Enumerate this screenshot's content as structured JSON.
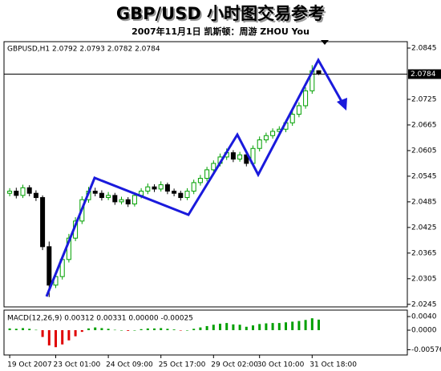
{
  "chart_data": [
    {
      "type": "candlestick",
      "title": "GBP/USD 小时图交易参考",
      "subtitle": "2007年11月1日  凯斯顿：周游 ZHOU You",
      "info": "GBPUSD,H1 2.0792 2.0793 2.0782 2.0784",
      "last_price": 2.0784,
      "up_color": "#00a000",
      "down_color": "#000000",
      "open": [
        2.0505,
        2.051,
        2.05,
        2.0518,
        2.0505,
        2.0495,
        2.038,
        2.029,
        2.031,
        2.035,
        2.04,
        2.044,
        2.049,
        2.051,
        2.0505,
        2.0495,
        2.05,
        2.0485,
        2.049,
        2.048,
        2.05,
        2.051,
        2.052,
        2.0515,
        2.0525,
        2.051,
        2.0505,
        2.0495,
        2.051,
        2.053,
        2.054,
        2.056,
        2.0575,
        2.059,
        2.06,
        2.0585,
        2.0595,
        2.0575,
        2.061,
        2.063,
        2.064,
        2.065,
        2.0655,
        2.067,
        2.069,
        2.071,
        2.0745,
        2.0792
      ],
      "high": [
        2.0517,
        2.0518,
        2.0525,
        2.0524,
        2.0512,
        2.05,
        2.0392,
        2.0318,
        2.0358,
        2.041,
        2.0449,
        2.0498,
        2.052,
        2.0518,
        2.0512,
        2.0508,
        2.0506,
        2.0497,
        2.0496,
        2.0507,
        2.0517,
        2.0528,
        2.0526,
        2.0533,
        2.053,
        2.0516,
        2.0511,
        2.0517,
        2.0537,
        2.0548,
        2.0567,
        2.0582,
        2.0598,
        2.061,
        2.0606,
        2.0602,
        2.0601,
        2.0617,
        2.0638,
        2.0647,
        2.0657,
        2.0662,
        2.0677,
        2.0698,
        2.0718,
        2.0753,
        2.0805,
        2.0793
      ],
      "low": [
        2.0498,
        2.0493,
        2.0494,
        2.0498,
        2.0487,
        2.0372,
        2.0262,
        2.0283,
        2.0303,
        2.0343,
        2.0393,
        2.0433,
        2.0483,
        2.0498,
        2.0488,
        2.0489,
        2.0478,
        2.0479,
        2.0473,
        2.0474,
        2.0493,
        2.0503,
        2.0508,
        2.0509,
        2.0503,
        2.0498,
        2.0488,
        2.0489,
        2.0503,
        2.0523,
        2.0533,
        2.0553,
        2.0568,
        2.0583,
        2.0578,
        2.0579,
        2.0568,
        2.0569,
        2.0603,
        2.0623,
        2.0633,
        2.0643,
        2.0648,
        2.0663,
        2.0683,
        2.0703,
        2.0738,
        2.0782
      ],
      "close": [
        2.051,
        2.05,
        2.0518,
        2.0505,
        2.0495,
        2.038,
        2.029,
        2.031,
        2.035,
        2.04,
        2.044,
        2.049,
        2.051,
        2.0505,
        2.0495,
        2.05,
        2.0485,
        2.049,
        2.048,
        2.05,
        2.051,
        2.052,
        2.0515,
        2.0525,
        2.051,
        2.0505,
        2.0495,
        2.051,
        2.053,
        2.054,
        2.056,
        2.0575,
        2.059,
        2.06,
        2.0585,
        2.0595,
        2.0575,
        2.061,
        2.063,
        2.064,
        2.065,
        2.0655,
        2.067,
        2.069,
        2.071,
        2.0745,
        2.0792,
        2.0784
      ],
      "ylim": [
        2.0239,
        2.086
      ],
      "yticks": [
        2.0245,
        2.0305,
        2.0365,
        2.0425,
        2.0485,
        2.0545,
        2.0605,
        2.0665,
        2.0725,
        2.0845
      ],
      "xticks": [
        {
          "value": 0,
          "label": "19 Oct 2007"
        },
        {
          "value": 7,
          "label": "23 Oct 01:00"
        },
        {
          "value": 15,
          "label": "24 Oct 09:00"
        },
        {
          "value": 23,
          "label": "25 Oct 17:00"
        },
        {
          "value": 31,
          "label": "29 Oct 02:00"
        },
        {
          "value": 38,
          "label": "30 Oct 10:00"
        },
        {
          "value": 46,
          "label": "31 Oct 18:00"
        }
      ]
    },
    {
      "type": "bar",
      "info": "MACD(12,26,9) 0.00312 0.00331 0.00000 -0.00025",
      "up_color": "#00a000",
      "down_color": "#e00000",
      "values": [
        0.0005,
        0.0004,
        0.0006,
        0.0004,
        0.0001,
        -0.002,
        -0.0045,
        -0.005,
        -0.0042,
        -0.003,
        -0.0018,
        -0.0005,
        0.0005,
        0.0008,
        0.0006,
        0.0004,
        0.0001,
        0.0,
        -0.0002,
        0.0,
        0.0003,
        0.0005,
        0.0005,
        0.0006,
        0.0004,
        0.0002,
        -0.0001,
        0.0,
        0.0004,
        0.0008,
        0.0012,
        0.0016,
        0.0019,
        0.0021,
        0.0017,
        0.0016,
        0.001,
        0.0014,
        0.0018,
        0.002,
        0.0021,
        0.0021,
        0.0023,
        0.0025,
        0.0027,
        0.003,
        0.0035,
        0.0031
      ],
      "ylim": [
        -0.0073,
        0.0059
      ],
      "yticks": [
        {
          "value": 0.004,
          "label": "0.0040"
        },
        {
          "value": 0,
          "label": "0.0000"
        },
        -0.00576
      ]
    }
  ]
}
